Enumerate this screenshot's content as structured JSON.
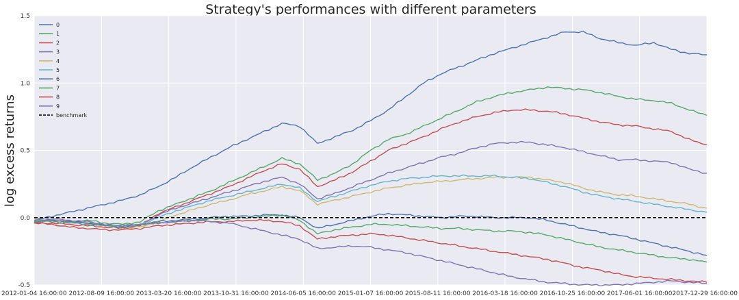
{
  "chart_data": {
    "type": "line",
    "title": "Strategy's performances with different parameters",
    "xlabel": "",
    "ylabel": "log excess returns",
    "ylim": [
      -0.5,
      1.5
    ],
    "yticks": [
      -0.5,
      0.0,
      0.5,
      1.0,
      1.5
    ],
    "ytick_labels": [
      "-0.5",
      "0.0",
      "0.5",
      "1.0",
      "1.5"
    ],
    "xticks": [
      "2012-01-04 16:00:00",
      "2012-08-09 16:00:00",
      "2013-03-20 16:00:00",
      "2013-10-31 16:00:00",
      "2014-06-05 16:00:00",
      "2015-01-07 16:00:00",
      "2015-08-11 16:00:00",
      "2016-03-18 16:00:00",
      "2016-10-25 16:00:00",
      "2017-06-01 16:00:00",
      "2017-12-29 16:00:00"
    ],
    "grid": true,
    "legend_position": "top-left",
    "background": "#EAEAF2",
    "series": [
      {
        "name": "0",
        "color": "#4C72B0",
        "values": [
          -0.02,
          0.01,
          0.04,
          0.07,
          0.1,
          0.13,
          0.17,
          0.23,
          0.3,
          0.38,
          0.45,
          0.52,
          0.58,
          0.64,
          0.7,
          0.68,
          0.55,
          0.6,
          0.65,
          0.72,
          0.8,
          0.9,
          1.0,
          1.07,
          1.12,
          1.17,
          1.22,
          1.26,
          1.3,
          1.34,
          1.38,
          1.38,
          1.33,
          1.3,
          1.28,
          1.3,
          1.25,
          1.22,
          1.21
        ]
      },
      {
        "name": "1",
        "color": "#55A868",
        "values": [
          -0.03,
          -0.02,
          -0.03,
          -0.02,
          -0.04,
          -0.05,
          -0.03,
          0.05,
          0.1,
          0.15,
          0.2,
          0.26,
          0.32,
          0.38,
          0.44,
          0.4,
          0.28,
          0.33,
          0.4,
          0.5,
          0.58,
          0.62,
          0.68,
          0.74,
          0.8,
          0.86,
          0.9,
          0.93,
          0.95,
          0.97,
          0.96,
          0.95,
          0.93,
          0.9,
          0.88,
          0.87,
          0.85,
          0.8,
          0.76
        ]
      },
      {
        "name": "2",
        "color": "#C44E52",
        "values": [
          -0.04,
          -0.04,
          -0.05,
          -0.06,
          -0.07,
          -0.08,
          -0.06,
          0.03,
          0.08,
          0.13,
          0.18,
          0.23,
          0.29,
          0.35,
          0.4,
          0.36,
          0.23,
          0.28,
          0.34,
          0.42,
          0.5,
          0.55,
          0.6,
          0.66,
          0.71,
          0.75,
          0.78,
          0.8,
          0.8,
          0.79,
          0.77,
          0.74,
          0.71,
          0.69,
          0.68,
          0.66,
          0.64,
          0.58,
          0.54
        ]
      },
      {
        "name": "3",
        "color": "#8172B2",
        "values": [
          -0.02,
          -0.01,
          -0.02,
          -0.03,
          -0.05,
          -0.07,
          -0.06,
          0.02,
          0.07,
          0.11,
          0.15,
          0.19,
          0.23,
          0.27,
          0.3,
          0.25,
          0.14,
          0.18,
          0.23,
          0.28,
          0.33,
          0.37,
          0.41,
          0.45,
          0.48,
          0.52,
          0.55,
          0.56,
          0.56,
          0.54,
          0.52,
          0.49,
          0.46,
          0.43,
          0.43,
          0.42,
          0.41,
          0.36,
          0.33
        ]
      },
      {
        "name": "4",
        "color": "#CCB974",
        "values": [
          -0.01,
          -0.02,
          -0.03,
          -0.04,
          -0.06,
          -0.08,
          -0.07,
          -0.03,
          0.02,
          0.06,
          0.1,
          0.13,
          0.17,
          0.2,
          0.23,
          0.2,
          0.1,
          0.13,
          0.16,
          0.19,
          0.22,
          0.24,
          0.26,
          0.27,
          0.28,
          0.29,
          0.3,
          0.3,
          0.3,
          0.28,
          0.26,
          0.22,
          0.19,
          0.17,
          0.16,
          0.14,
          0.12,
          0.1,
          0.07
        ]
      },
      {
        "name": "5",
        "color": "#64B5CD",
        "values": [
          -0.02,
          -0.02,
          -0.03,
          -0.04,
          -0.06,
          -0.07,
          -0.05,
          0.0,
          0.05,
          0.09,
          0.13,
          0.16,
          0.19,
          0.22,
          0.25,
          0.22,
          0.12,
          0.16,
          0.2,
          0.24,
          0.27,
          0.29,
          0.3,
          0.31,
          0.31,
          0.31,
          0.31,
          0.3,
          0.29,
          0.26,
          0.23,
          0.19,
          0.16,
          0.14,
          0.12,
          0.1,
          0.08,
          0.06,
          0.04
        ]
      },
      {
        "name": "6",
        "color": "#4C72B0",
        "values": [
          -0.03,
          -0.02,
          -0.03,
          -0.04,
          -0.06,
          -0.07,
          -0.05,
          -0.03,
          -0.02,
          -0.01,
          0.0,
          0.01,
          0.01,
          0.02,
          0.02,
          0.0,
          -0.08,
          -0.05,
          -0.02,
          0.01,
          0.03,
          0.02,
          0.01,
          0.0,
          0.01,
          0.01,
          0.0,
          0.0,
          0.0,
          -0.02,
          -0.05,
          -0.08,
          -0.11,
          -0.13,
          -0.16,
          -0.19,
          -0.22,
          -0.25,
          -0.28
        ]
      },
      {
        "name": "7",
        "color": "#55A868",
        "values": [
          -0.03,
          -0.03,
          -0.04,
          -0.05,
          -0.06,
          -0.06,
          -0.05,
          -0.04,
          -0.03,
          -0.02,
          -0.01,
          -0.01,
          0.0,
          0.01,
          0.02,
          -0.02,
          -0.12,
          -0.09,
          -0.07,
          -0.05,
          -0.05,
          -0.06,
          -0.07,
          -0.08,
          -0.08,
          -0.09,
          -0.1,
          -0.1,
          -0.11,
          -0.13,
          -0.16,
          -0.19,
          -0.22,
          -0.24,
          -0.26,
          -0.28,
          -0.3,
          -0.31,
          -0.33
        ]
      },
      {
        "name": "8",
        "color": "#C44E52",
        "values": [
          -0.04,
          -0.05,
          -0.07,
          -0.08,
          -0.09,
          -0.09,
          -0.08,
          -0.06,
          -0.05,
          -0.04,
          -0.03,
          -0.03,
          -0.02,
          -0.02,
          -0.03,
          -0.06,
          -0.16,
          -0.14,
          -0.13,
          -0.12,
          -0.13,
          -0.15,
          -0.17,
          -0.19,
          -0.21,
          -0.23,
          -0.25,
          -0.27,
          -0.29,
          -0.31,
          -0.34,
          -0.37,
          -0.39,
          -0.42,
          -0.44,
          -0.45,
          -0.46,
          -0.47,
          -0.48
        ]
      },
      {
        "name": "9",
        "color": "#8172B2",
        "values": [
          -0.02,
          -0.02,
          -0.03,
          -0.04,
          -0.05,
          -0.06,
          -0.05,
          -0.04,
          -0.03,
          -0.02,
          -0.03,
          -0.04,
          -0.07,
          -0.1,
          -0.13,
          -0.16,
          -0.23,
          -0.22,
          -0.21,
          -0.22,
          -0.24,
          -0.26,
          -0.29,
          -0.32,
          -0.35,
          -0.38,
          -0.41,
          -0.44,
          -0.46,
          -0.48,
          -0.49,
          -0.5,
          -0.5,
          -0.5,
          -0.49,
          -0.48,
          -0.47,
          -0.48,
          -0.49
        ]
      }
    ],
    "benchmark": {
      "name": "benchmark",
      "color": "#000000",
      "style": "dashed",
      "value": 0.0
    }
  }
}
